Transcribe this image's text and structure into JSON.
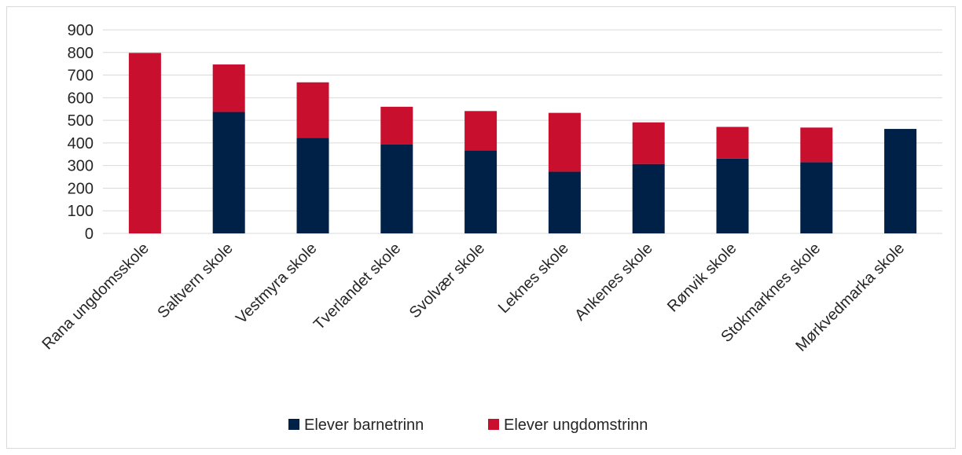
{
  "chart_data": {
    "type": "bar",
    "stacked": true,
    "categories": [
      "Rana ungdomsskole",
      "Saltvern skole",
      "Vestmyra skole",
      "Tverlandet skole",
      "Svolvær skole",
      "Leknes skole",
      "Ankenes skole",
      "Rønvik skole",
      "Stokmarknes skole",
      "Mørkvedmarka skole"
    ],
    "series": [
      {
        "name": "Elever barnetrinn",
        "color": "#002147",
        "values": [
          0,
          537,
          422,
          394,
          367,
          273,
          307,
          331,
          315,
          462
        ]
      },
      {
        "name": "Elever ungdomstrinn",
        "color": "#c8102e",
        "values": [
          798,
          210,
          246,
          166,
          174,
          260,
          184,
          140,
          153,
          0
        ]
      }
    ],
    "yticks": [
      "0",
      "100",
      "200",
      "300",
      "400",
      "500",
      "600",
      "700",
      "800",
      "900"
    ],
    "ylim": [
      0,
      900
    ],
    "grid": true,
    "legend_position": "bottom"
  }
}
